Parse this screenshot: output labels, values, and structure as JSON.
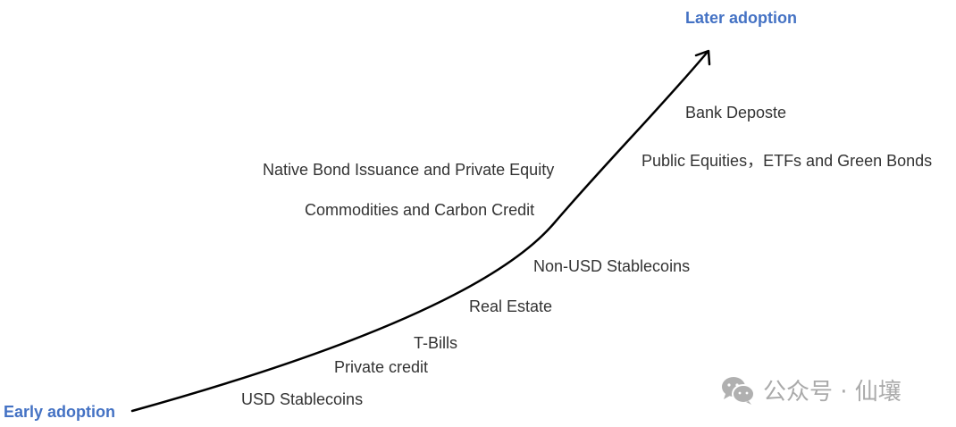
{
  "axis": {
    "start": "Early adoption",
    "end": "Later adoption",
    "color": "#4472c4"
  },
  "items": [
    "USD Stablecoins",
    "Private credit",
    "T-Bills",
    "Real Estate",
    "Non-USD Stablecoins",
    "Commodities and Carbon Credit",
    "Native Bond Issuance and Private Equity",
    "Public Equities，ETFs and Green Bonds",
    "Bank Deposte"
  ],
  "watermark": {
    "icon": "wechat-icon",
    "text": "公众号 · 仙壤"
  }
}
